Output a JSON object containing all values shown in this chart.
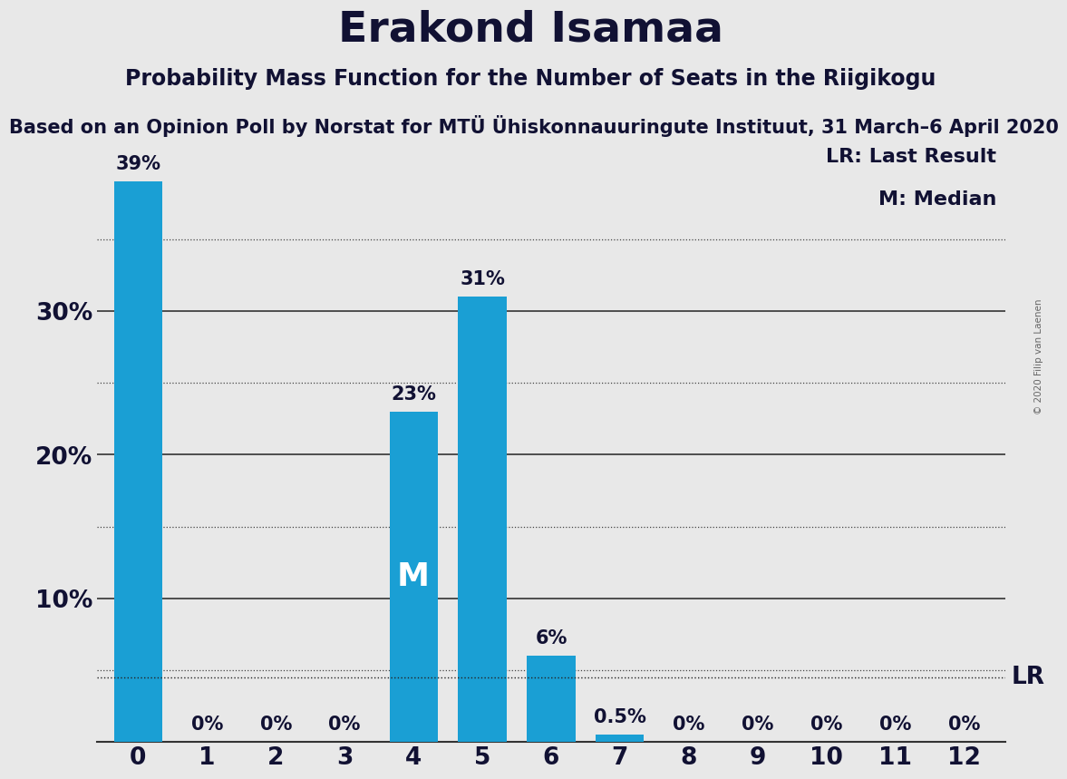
{
  "title": "Erakond Isamaa",
  "subtitle": "Probability Mass Function for the Number of Seats in the Riigikogu",
  "source_label": "Based on an Opinion Poll by Norstat for MTÜ Ühiskonnauuringute Instituut, 31 March–6 April 2020",
  "copyright": "© 2020 Filip van Laenen",
  "categories": [
    0,
    1,
    2,
    3,
    4,
    5,
    6,
    7,
    8,
    9,
    10,
    11,
    12
  ],
  "values": [
    39,
    0,
    0,
    0,
    23,
    31,
    6,
    0.5,
    0,
    0,
    0,
    0,
    0
  ],
  "bar_color": "#1a9fd4",
  "background_color": "#e8e8e8",
  "text_color": "#111133",
  "median_index": 4,
  "lr_value": 4.5,
  "lr_label": "LR",
  "median_label": "M",
  "legend_lr": "LR: Last Result",
  "legend_m": "M: Median",
  "ylim": [
    0,
    42
  ],
  "yticks": [
    0,
    10,
    20,
    30
  ],
  "ytick_labels": [
    "",
    "10%",
    "20%",
    "30%"
  ],
  "solid_grid_lines": [
    10,
    20,
    30
  ],
  "dotted_grid_lines": [
    5,
    15,
    25,
    35
  ],
  "bar_labels": [
    "39%",
    "0%",
    "0%",
    "0%",
    "23%",
    "31%",
    "6%",
    "0.5%",
    "0%",
    "0%",
    "0%",
    "0%",
    "0%"
  ],
  "title_fontsize": 34,
  "subtitle_fontsize": 17,
  "source_fontsize": 15,
  "bar_label_fontsize": 15,
  "axis_label_fontsize": 19,
  "median_label_fontsize": 26,
  "legend_fontsize": 16
}
